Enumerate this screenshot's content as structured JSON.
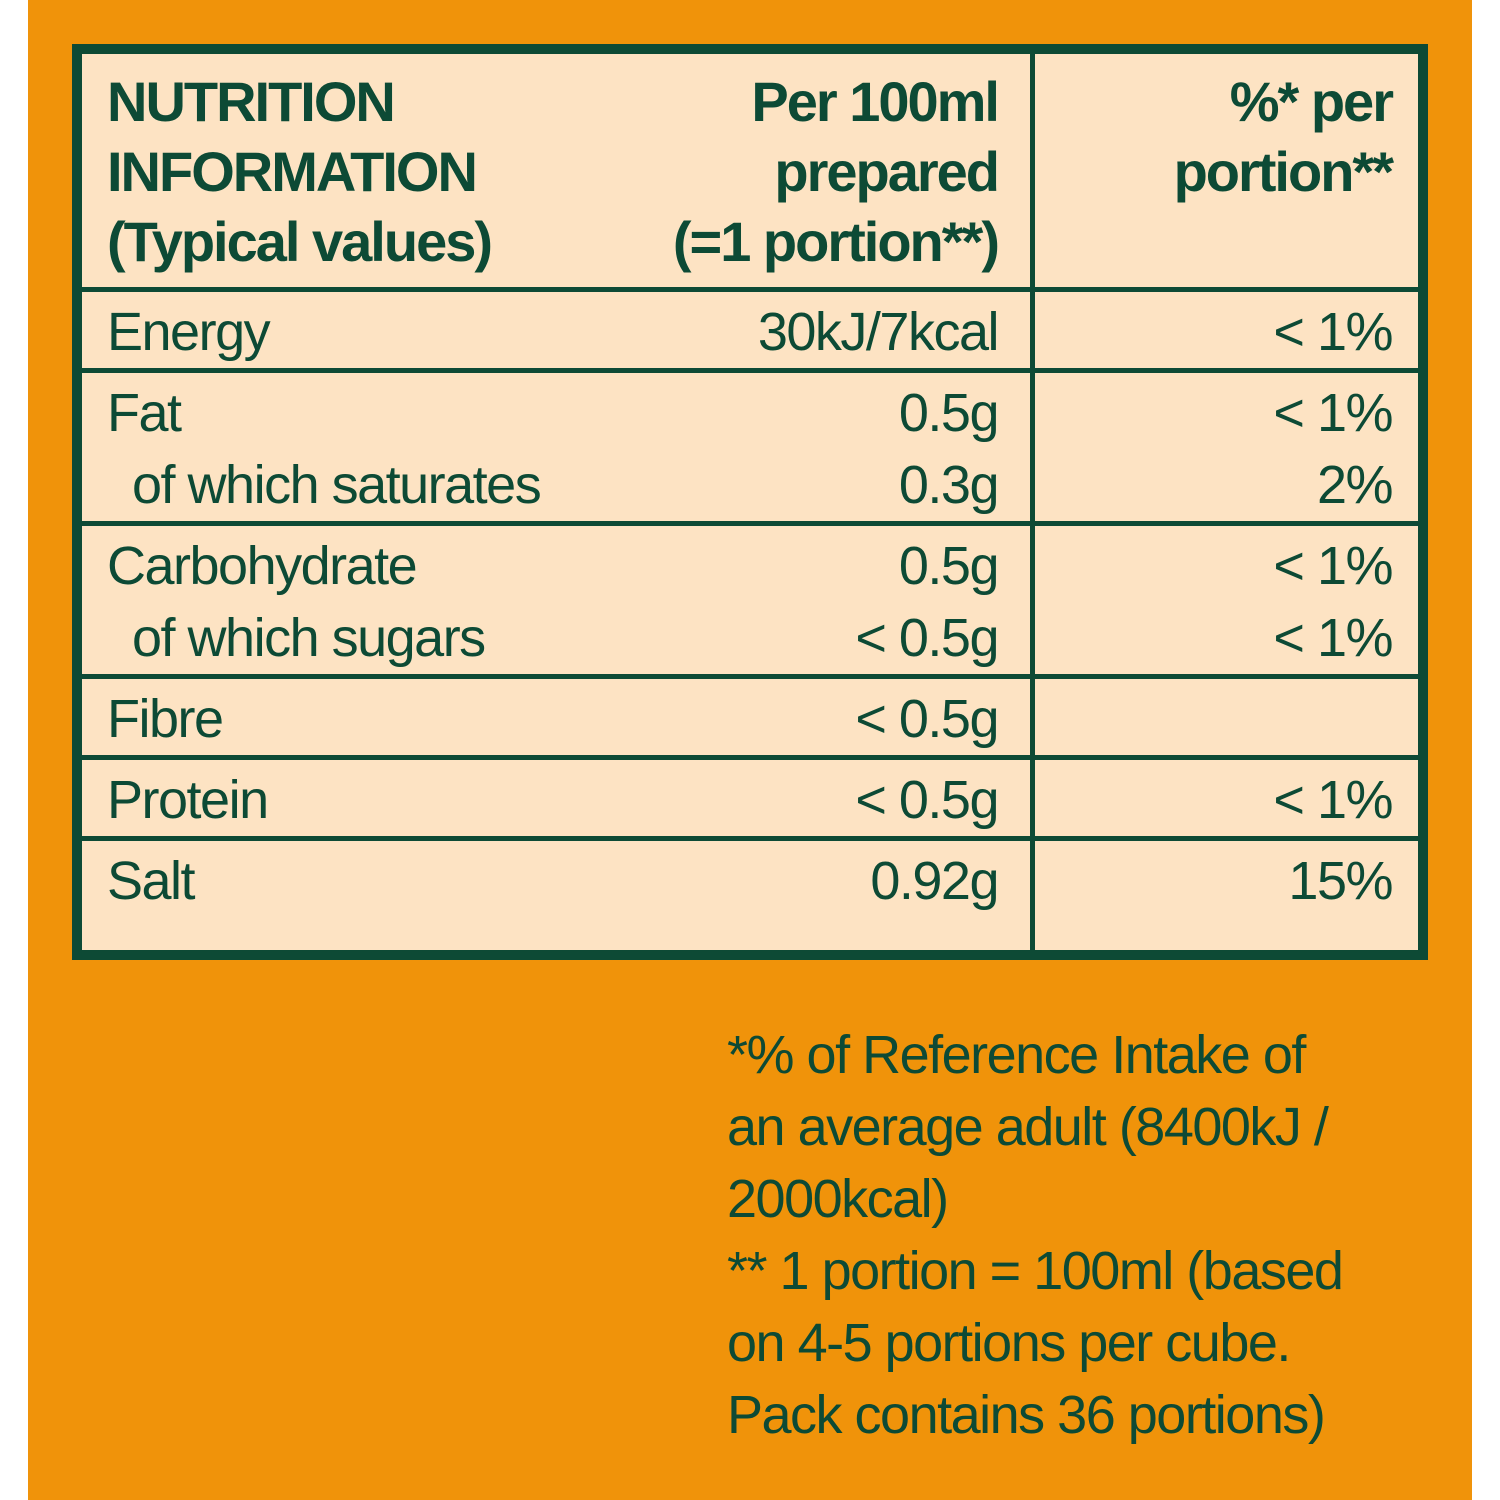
{
  "table": {
    "header": [
      [
        "NUTRITION",
        "INFORMATION",
        "(Typical values)"
      ],
      [
        "Per 100ml",
        "prepared",
        "(=1 portion**)"
      ],
      [
        "%* per",
        "portion**"
      ]
    ],
    "groups": [
      [
        {
          "label": "Energy",
          "per_100ml": "30kJ/7kcal",
          "percent": "< 1%"
        }
      ],
      [
        {
          "label": "Fat",
          "per_100ml": "0.5g",
          "percent": "< 1%"
        },
        {
          "label": "of which saturates",
          "per_100ml": "0.3g",
          "percent": "2%"
        }
      ],
      [
        {
          "label": "Carbohydrate",
          "per_100ml": "0.5g",
          "percent": "< 1%"
        },
        {
          "label": "of which sugars",
          "per_100ml": "< 0.5g",
          "percent": "< 1%"
        }
      ],
      [
        {
          "label": "Fibre",
          "per_100ml": "< 0.5g"
        }
      ],
      [
        {
          "label": "Protein",
          "per_100ml": "< 0.5g",
          "percent": "< 1%"
        }
      ],
      [
        {
          "label": "Salt",
          "per_100ml": "0.92g",
          "percent": "15%"
        }
      ]
    ]
  },
  "footnotes": [
    "*% of Reference Intake of",
    "an average adult (8400kJ /",
    "2000kcal)",
    "** 1 portion = 100ml (based",
    "on 4-5 portions per cube.",
    "Pack contains 36 portions)"
  ]
}
